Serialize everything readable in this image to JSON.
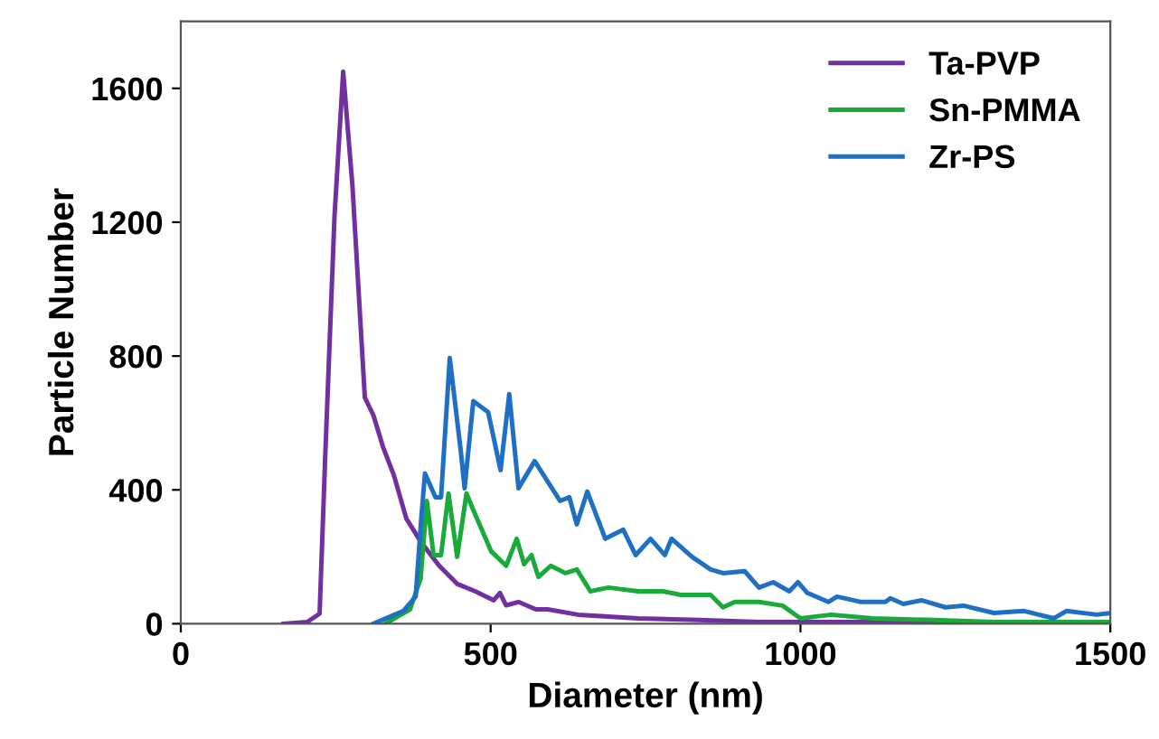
{
  "chart_data": {
    "type": "line",
    "xlabel": "Diameter (nm)",
    "ylabel": "Particle Number",
    "xlim": [
      0,
      1500
    ],
    "xticks": [
      0,
      500,
      1000,
      1500
    ],
    "ylim": [
      0,
      1800
    ],
    "yticks": [
      0,
      400,
      800,
      1200,
      1600
    ],
    "grid": false,
    "legend": "top right",
    "marker": "none",
    "line_style": "solid",
    "series": [
      {
        "name": "Ta-PVP",
        "color": "#7030a0",
        "x": [
          166,
          204,
          224,
          233,
          248,
          262,
          277,
          297,
          311,
          326,
          344,
          364,
          388,
          417,
          446,
          475,
          505,
          515,
          525,
          545,
          573,
          592,
          641,
          738,
          836,
          933,
          1100,
          1300,
          1500
        ],
        "values": [
          0,
          5,
          30,
          497,
          1216,
          1650,
          1308,
          676,
          622,
          530,
          443,
          314,
          243,
          173,
          119,
          97,
          70,
          92,
          55,
          65,
          43,
          43,
          27,
          16,
          11,
          5,
          5,
          5,
          5
        ]
      },
      {
        "name": "Sn-PMMA",
        "color": "#1aaa3a",
        "x": [
          330,
          370,
          387,
          397,
          408,
          420,
          432,
          446,
          461,
          472,
          501,
          525,
          542,
          554,
          566,
          577,
          597,
          621,
          639,
          661,
          690,
          738,
          778,
          807,
          855,
          875,
          894,
          933,
          971,
          1000,
          1050,
          1117,
          1215,
          1312,
          1500
        ],
        "values": [
          0,
          43,
          135,
          367,
          205,
          205,
          389,
          200,
          389,
          340,
          216,
          173,
          254,
          178,
          205,
          140,
          173,
          151,
          162,
          97,
          108,
          97,
          97,
          86,
          86,
          49,
          65,
          65,
          54,
          16,
          27,
          16,
          11,
          5,
          5
        ]
      },
      {
        "name": "Zr-PS",
        "color": "#1f6fc5",
        "x": [
          311,
          359,
          379,
          388,
          394,
          411,
          420,
          434,
          452,
          458,
          472,
          496,
          516,
          530,
          545,
          571,
          612,
          627,
          639,
          656,
          685,
          714,
          734,
          758,
          781,
          792,
          825,
          855,
          875,
          910,
          933,
          956,
          982,
          996,
          1011,
          1045,
          1059,
          1098,
          1137,
          1145,
          1166,
          1195,
          1234,
          1263,
          1312,
          1361,
          1409,
          1429,
          1478,
          1500
        ],
        "values": [
          0,
          38,
          81,
          313,
          449,
          378,
          378,
          794,
          513,
          405,
          665,
          632,
          459,
          686,
          405,
          486,
          367,
          378,
          297,
          395,
          254,
          281,
          205,
          254,
          205,
          254,
          200,
          162,
          151,
          157,
          108,
          124,
          97,
          124,
          92,
          65,
          81,
          65,
          65,
          76,
          59,
          70,
          49,
          54,
          32,
          38,
          16,
          38,
          27,
          32
        ]
      }
    ]
  }
}
